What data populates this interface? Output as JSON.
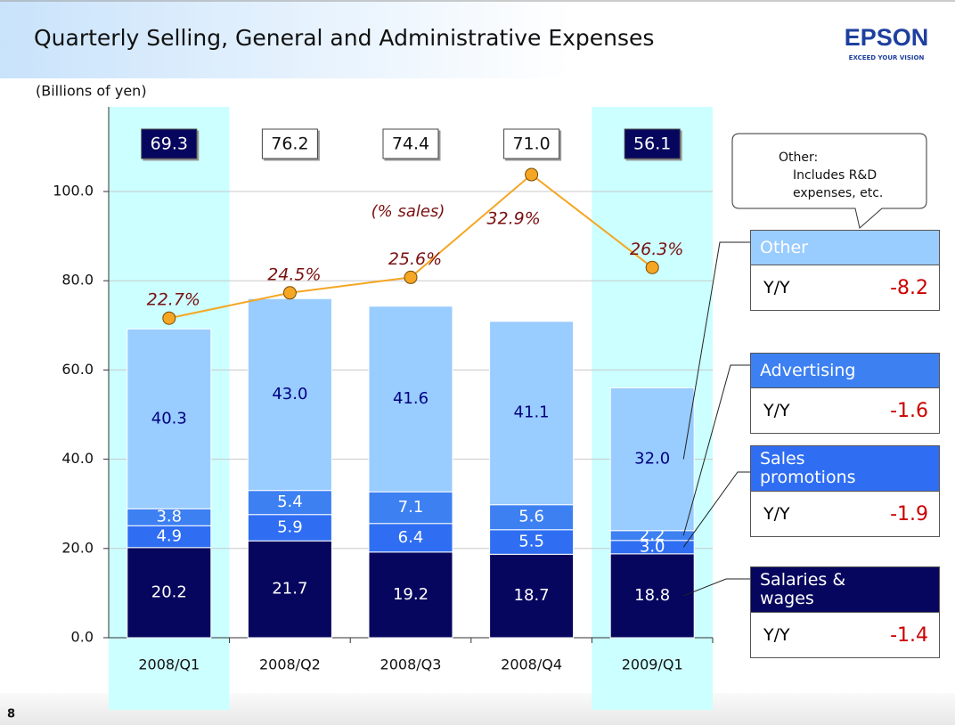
{
  "chart_data": {
    "type": "stacked_bar_line",
    "title": "Quarterly Selling, General and Administrative Expenses",
    "logo": {
      "name": "EPSON",
      "tagline": "EXCEED YOUR VISION"
    },
    "y_label": "(Billions of yen)",
    "page_number": "8",
    "categories": [
      "2008/Q1",
      "2008/Q2",
      "2008/Q3",
      "2008/Q4",
      "2009/Q1"
    ],
    "highlight_categories": [
      0,
      4
    ],
    "ylim": [
      0,
      100
    ],
    "yticks": [
      {
        "value": 0,
        "label": "0.0"
      },
      {
        "value": 20,
        "label": "20.0"
      },
      {
        "value": 40,
        "label": "40.0"
      },
      {
        "value": 60,
        "label": "60.0"
      },
      {
        "value": 80,
        "label": "80.0"
      },
      {
        "value": 100,
        "label": "100.0"
      }
    ],
    "grid": true,
    "y2lim": [
      0,
      31.7
    ],
    "series": [
      {
        "name": "Salaries & wages",
        "color": "#06065e",
        "label_color": "#ffffff",
        "values": [
          20.2,
          21.7,
          19.2,
          18.7,
          18.8
        ],
        "value_labels": [
          "20.2",
          "21.7",
          "19.2",
          "18.7",
          "18.8"
        ],
        "yoy": -1.4
      },
      {
        "name": "Sales promotions",
        "color": "#2f6ef2",
        "label_color": "#ffffff",
        "values": [
          4.9,
          5.9,
          6.4,
          5.5,
          3.0
        ],
        "value_labels": [
          "4.9",
          "5.9",
          "6.4",
          "5.5",
          "3.0"
        ],
        "yoy": -1.9
      },
      {
        "name": "Advertising",
        "color": "#3d80f2",
        "label_color": "#ffffff",
        "values": [
          3.8,
          5.4,
          7.1,
          5.6,
          2.2
        ],
        "value_labels": [
          "3.8",
          "5.4",
          "7.1",
          "5.6",
          "2.2"
        ],
        "yoy": -1.6
      },
      {
        "name": "Other",
        "color": "#99ccff",
        "label_color": "#000080",
        "values": [
          40.3,
          43.0,
          41.6,
          41.1,
          32.0
        ],
        "value_labels": [
          "40.3",
          "43.0",
          "41.6",
          "41.1",
          "32.0"
        ],
        "yoy": -8.2
      }
    ],
    "totals": {
      "values": [
        69.3,
        76.2,
        74.4,
        71.0,
        56.1
      ],
      "value_labels": [
        "69.3",
        "76.2",
        "74.4",
        "71.0",
        "56.1"
      ]
    },
    "line": {
      "name": "(% sales)",
      "axis": "y2",
      "color": "#f5a623",
      "values": [
        22.7,
        24.5,
        25.6,
        32.9,
        26.3
      ],
      "value_labels": [
        "22.7%",
        "24.5%",
        "25.6%",
        "32.9%",
        "26.3%"
      ]
    },
    "yoy_label": "Y/Y",
    "callout": [
      "Other:",
      "Includes R&D",
      "expenses, etc."
    ]
  }
}
